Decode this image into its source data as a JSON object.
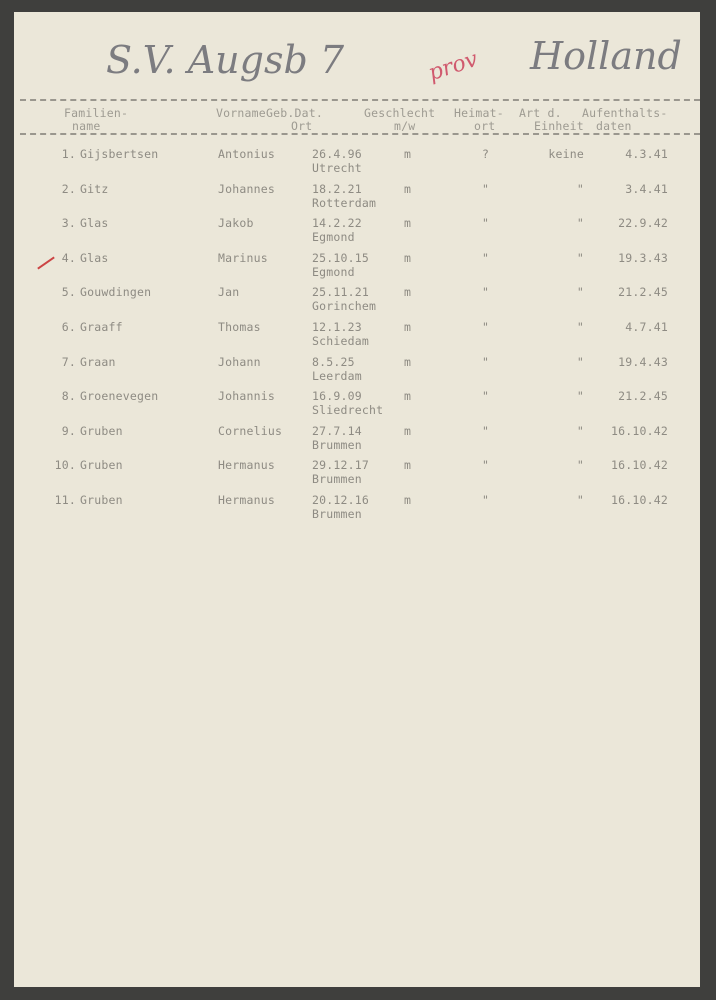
{
  "handwriting": {
    "title": "S.V. Augsb 7",
    "red_note": "prov",
    "country": "Holland"
  },
  "headers": {
    "familienname": [
      "Familien-",
      "name"
    ],
    "vorname": "Vorname",
    "geb": [
      "Geb.Dat.",
      "Ort"
    ],
    "geschlecht": [
      "Geschlecht",
      "m/w"
    ],
    "heimat": [
      "Heimat-",
      "ort"
    ],
    "art": [
      "Art d.",
      "Einheit"
    ],
    "aufenthalt": [
      "Aufenthalts-",
      "daten"
    ]
  },
  "rows": [
    {
      "no": "1.",
      "surname": "Gijsbertsen",
      "first": "Antonius",
      "date": "26.4.96",
      "place": "Utrecht",
      "sex": "m",
      "heimat": "?",
      "art": "keine",
      "stay": "4.3.41"
    },
    {
      "no": "2.",
      "surname": "Gitz",
      "first": "Johannes",
      "date": "18.2.21",
      "place": "Rotterdam",
      "sex": "m",
      "heimat": "\"",
      "art": "\"",
      "stay": "3.4.41"
    },
    {
      "no": "3.",
      "surname": "Glas",
      "first": "Jakob",
      "date": "14.2.22",
      "place": "Egmond",
      "sex": "m",
      "heimat": "\"",
      "art": "\"",
      "stay": "22.9.42"
    },
    {
      "no": "4.",
      "surname": "Glas",
      "first": "Marinus",
      "date": "25.10.15",
      "place": "Egmond",
      "sex": "m",
      "heimat": "\"",
      "art": "\"",
      "stay": "19.3.43"
    },
    {
      "no": "5.",
      "surname": "Gouwdingen",
      "first": "Jan",
      "date": "25.11.21",
      "place": "Gorinchem",
      "sex": "m",
      "heimat": "\"",
      "art": "\"",
      "stay": "21.2.45"
    },
    {
      "no": "6.",
      "surname": "Graaff",
      "first": "Thomas",
      "date": "12.1.23",
      "place": "Schiedam",
      "sex": "m",
      "heimat": "\"",
      "art": "\"",
      "stay": "4.7.41"
    },
    {
      "no": "7.",
      "surname": "Graan",
      "first": "Johann",
      "date": "8.5.25",
      "place": "Leerdam",
      "sex": "m",
      "heimat": "\"",
      "art": "\"",
      "stay": "19.4.43"
    },
    {
      "no": "8.",
      "surname": "Groenevegen",
      "first": "Johannis",
      "date": "16.9.09",
      "place": "Sliedrecht",
      "sex": "m",
      "heimat": "\"",
      "art": "\"",
      "stay": "21.2.45"
    },
    {
      "no": "9.",
      "surname": "Gruben",
      "first": "Cornelius",
      "date": "27.7.14",
      "place": "Brummen",
      "sex": "m",
      "heimat": "\"",
      "art": "\"",
      "stay": "16.10.42"
    },
    {
      "no": "10.",
      "surname": "Gruben",
      "first": "Hermanus",
      "date": "29.12.17",
      "place": "Brummen",
      "sex": "m",
      "heimat": "\"",
      "art": "\"",
      "stay": "16.10.42"
    },
    {
      "no": "11.",
      "surname": "Gruben",
      "first": "Hermanus",
      "date": "20.12.16",
      "place": "Brummen",
      "sex": "m",
      "heimat": "\"",
      "art": "\"",
      "stay": "16.10.42"
    }
  ]
}
